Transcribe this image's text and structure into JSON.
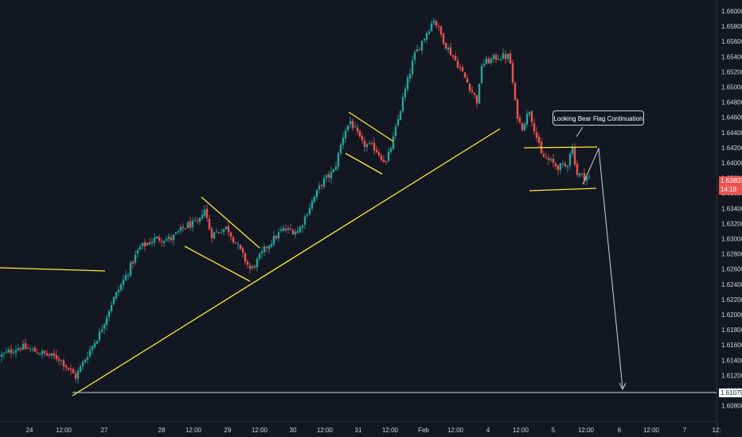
{
  "chart_data": {
    "type": "candlestick",
    "colors": {
      "background": "#131722",
      "up": "#26a69a",
      "down": "#ef5350",
      "drawing": "#ffeb3b",
      "arrow": "#d1d4dc",
      "axis_text": "#d1d4dc"
    },
    "y_axis": {
      "ylim": [
        1.607,
        1.6605
      ],
      "ticks": [
        "1.66000",
        "1.65800",
        "1.65600",
        "1.65400",
        "1.65200",
        "1.65000",
        "1.64800",
        "1.64600",
        "1.64400",
        "1.64200",
        "1.64000",
        "1.63800",
        "1.63600",
        "1.63400",
        "1.63200",
        "1.63000",
        "1.62800",
        "1.62600",
        "1.62400",
        "1.62200",
        "1.62000",
        "1.61800",
        "1.61600",
        "1.61400",
        "1.61200",
        "1.61000",
        "1.60800"
      ]
    },
    "x_axis": {
      "ticks": [
        "24",
        "12:00",
        "27",
        "28",
        "12:00",
        "29",
        "12:00",
        "30",
        "12:00",
        "31",
        "12:00",
        "Feb",
        "12:00",
        "4",
        "12:00",
        "5",
        "12:00",
        "6",
        "12:00",
        "7",
        "12:"
      ]
    },
    "current_price": {
      "value": "1.63803",
      "countdown": "14:18"
    },
    "level_label": {
      "value": "1.61079"
    },
    "annotation": {
      "text": "Looking Bear Flag Continuation"
    },
    "close_path": [
      [
        0,
        1.6145
      ],
      [
        25,
        1.6158
      ],
      [
        50,
        1.615
      ],
      [
        75,
        1.6142
      ],
      [
        95,
        1.6118
      ],
      [
        110,
        1.6148
      ],
      [
        125,
        1.6175
      ],
      [
        140,
        1.6215
      ],
      [
        160,
        1.6255
      ],
      [
        175,
        1.6288
      ],
      [
        195,
        1.63
      ],
      [
        215,
        1.63
      ],
      [
        235,
        1.6318
      ],
      [
        250,
        1.632
      ],
      [
        256,
        1.6343
      ],
      [
        265,
        1.6305
      ],
      [
        285,
        1.6315
      ],
      [
        305,
        1.6278
      ],
      [
        315,
        1.6258
      ],
      [
        335,
        1.629
      ],
      [
        355,
        1.6312
      ],
      [
        375,
        1.631
      ],
      [
        390,
        1.6345
      ],
      [
        405,
        1.6375
      ],
      [
        420,
        1.639
      ],
      [
        432,
        1.644
      ],
      [
        440,
        1.6455
      ],
      [
        455,
        1.6425
      ],
      [
        470,
        1.642
      ],
      [
        485,
        1.64
      ],
      [
        495,
        1.6435
      ],
      [
        505,
        1.648
      ],
      [
        520,
        1.654
      ],
      [
        535,
        1.657
      ],
      [
        545,
        1.659
      ],
      [
        560,
        1.6555
      ],
      [
        575,
        1.653
      ],
      [
        590,
        1.65
      ],
      [
        600,
        1.648
      ],
      [
        605,
        1.653
      ],
      [
        625,
        1.654
      ],
      [
        640,
        1.654
      ],
      [
        648,
        1.647
      ],
      [
        655,
        1.6445
      ],
      [
        665,
        1.647
      ],
      [
        680,
        1.641
      ],
      [
        700,
        1.6395
      ],
      [
        712,
        1.6395
      ],
      [
        718,
        1.6425
      ],
      [
        725,
        1.6385
      ],
      [
        740,
        1.638
      ]
    ]
  }
}
